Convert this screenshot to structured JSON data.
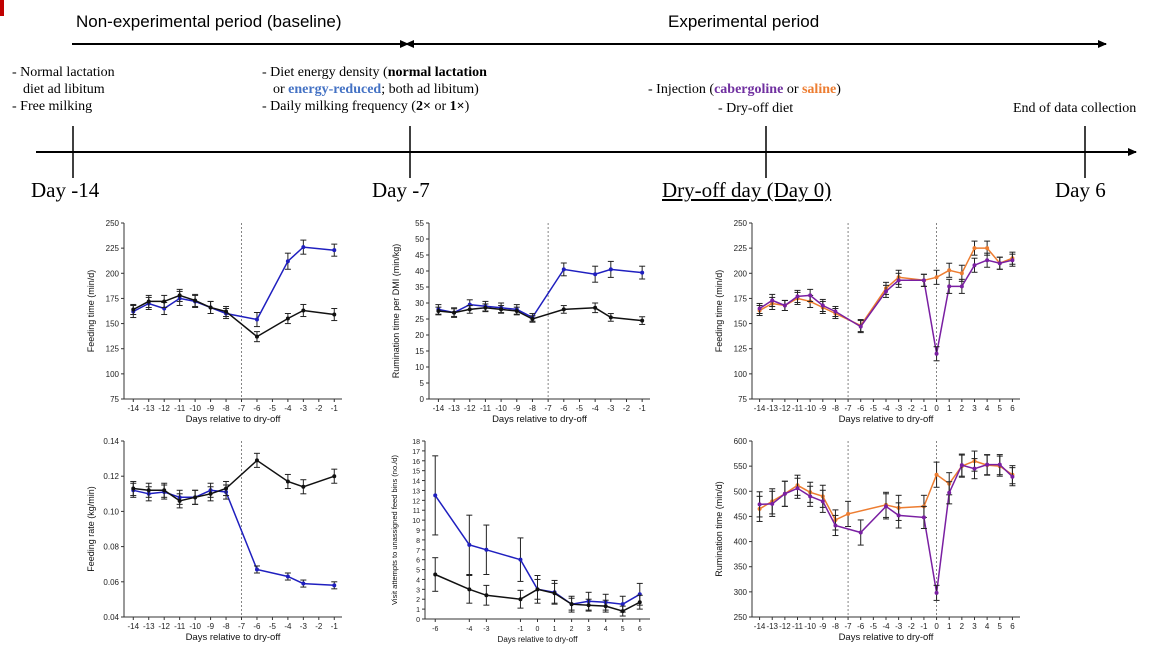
{
  "timeline": {
    "period_baseline": "Non-experimental period (baseline)",
    "period_experimental": "Experimental period",
    "left_line1": "- Normal lactation",
    "left_line2": "diet ad libitum",
    "left_line3": "- Free milking",
    "mid_prefix": "- Diet energy density (",
    "mid_normal": "normal lactation",
    "mid_or": "or ",
    "mid_reduced": "energy-reduced",
    "mid_suffix": "; both ad libitum)",
    "mid_line3_a": "- Daily milking  frequency (",
    "mid_2x": "2×",
    "mid_or2": " or ",
    "mid_1x": "1×",
    "mid_close": ")",
    "inj_prefix": "- Injection  (",
    "inj_cab": "cabergoline",
    "inj_or": " or ",
    "inj_sal": "saline",
    "inj_close": ")",
    "dryoff_diet": "- Dry-off diet",
    "end_label": "End of data collection",
    "day_m14": "Day -14",
    "day_m7": "Day -7",
    "day_0": "Dry-off day (Day 0)",
    "day_6": "Day 6"
  },
  "colors": {
    "blue": "#1f1fbf",
    "black": "#111111",
    "orange": "#ed7d31",
    "purple": "#7a1fa2"
  },
  "chart_data": [
    {
      "id": "feeding-time-diet",
      "type": "line",
      "ylabel": "Feeding time (min/d)",
      "xlabel": "Days relative to dry-off",
      "ylim": [
        75,
        250
      ],
      "yticks": [
        75,
        100,
        125,
        150,
        175,
        200,
        225,
        250
      ],
      "xlim": [
        -14.6,
        -0.5
      ],
      "xticks": [
        -14,
        -13,
        -12,
        -11,
        -10,
        -9,
        -8,
        -7,
        -6,
        -5,
        -4,
        -3,
        -2,
        -1
      ],
      "vline": -7,
      "series": [
        {
          "color": "blue",
          "x": [
            -14,
            -13,
            -12,
            -11,
            -10,
            -9,
            -8,
            -6,
            -4,
            -3,
            -1
          ],
          "y": [
            162,
            170,
            165,
            175,
            172,
            166,
            160,
            154,
            212,
            226,
            223
          ],
          "err": [
            6,
            6,
            6,
            7,
            6,
            6,
            5,
            7,
            8,
            7,
            6
          ]
        },
        {
          "color": "black",
          "x": [
            -14,
            -13,
            -12,
            -11,
            -10,
            -9,
            -8,
            -6,
            -4,
            -3,
            -1
          ],
          "y": [
            164,
            172,
            172,
            178,
            173,
            166,
            162,
            137,
            155,
            163,
            159
          ],
          "err": [
            5,
            6,
            6,
            6,
            6,
            6,
            5,
            5,
            5,
            6,
            6
          ]
        }
      ]
    },
    {
      "id": "rumination-per-dmi",
      "type": "line",
      "ylabel": "Rumination time per DMI (min/kg)",
      "xlabel": "Days relative to dry-off",
      "ylim": [
        0,
        55
      ],
      "yticks": [
        0,
        5,
        10,
        15,
        20,
        25,
        30,
        35,
        40,
        45,
        50,
        55
      ],
      "xlim": [
        -14.6,
        -0.5
      ],
      "xticks": [
        -14,
        -13,
        -12,
        -11,
        -10,
        -9,
        -8,
        -7,
        -6,
        -5,
        -4,
        -3,
        -2,
        -1
      ],
      "vline": -7,
      "series": [
        {
          "color": "blue",
          "x": [
            -14,
            -13,
            -12,
            -11,
            -10,
            -9,
            -8,
            -6,
            -4,
            -3,
            -1
          ],
          "y": [
            28,
            27,
            29.5,
            29,
            28.5,
            28,
            25.5,
            40.5,
            39,
            40.5,
            39.5
          ],
          "err": [
            1.5,
            1.5,
            1.5,
            1.5,
            1.5,
            1.5,
            1.2,
            2,
            2.5,
            2.5,
            2
          ]
        },
        {
          "color": "black",
          "x": [
            -14,
            -13,
            -12,
            -11,
            -10,
            -9,
            -8,
            -6,
            -4,
            -3,
            -1
          ],
          "y": [
            27.5,
            27,
            28,
            28.5,
            28,
            27.5,
            25,
            28,
            28.5,
            25.5,
            24.5
          ],
          "err": [
            1.2,
            1.2,
            1.2,
            1.2,
            1.2,
            1.2,
            1,
            1.2,
            1.5,
            1.2,
            1.2
          ]
        }
      ]
    },
    {
      "id": "feeding-time-injection",
      "type": "line",
      "ylabel": "Feeding time (min/d)",
      "xlabel": "Days relative to dry-off",
      "ylim": [
        75,
        250
      ],
      "yticks": [
        75,
        100,
        125,
        150,
        175,
        200,
        225,
        250
      ],
      "xlim": [
        -14.6,
        6.6
      ],
      "xticks": [
        -14,
        -13,
        -12,
        -11,
        -10,
        -9,
        -8,
        -7,
        -6,
        -5,
        -4,
        -3,
        -2,
        -1,
        0,
        1,
        2,
        3,
        4,
        5,
        6
      ],
      "vline": [
        -7,
        0
      ],
      "series": [
        {
          "color": "orange",
          "x": [
            -14,
            -13,
            -12,
            -11,
            -10,
            -9,
            -8,
            -6,
            -4,
            -3,
            -1,
            0,
            1,
            2,
            3,
            4,
            5,
            6
          ],
          "y": [
            163,
            170,
            168,
            175,
            172,
            166,
            160,
            148,
            185,
            196,
            193,
            196,
            203,
            200,
            225,
            225,
            210,
            215
          ],
          "err": [
            5,
            6,
            5,
            6,
            6,
            6,
            5,
            6,
            6,
            7,
            6,
            7,
            7,
            8,
            7,
            7,
            6,
            6
          ]
        },
        {
          "color": "purple",
          "x": [
            -14,
            -13,
            -12,
            -11,
            -10,
            -9,
            -8,
            -6,
            -4,
            -3,
            -1,
            0,
            1,
            2,
            3,
            4,
            5,
            6
          ],
          "y": [
            165,
            173,
            168,
            177,
            178,
            168,
            162,
            147,
            182,
            193,
            193,
            120,
            187,
            187,
            208,
            213,
            210,
            213
          ],
          "err": [
            5,
            6,
            5,
            6,
            6,
            6,
            5,
            6,
            6,
            7,
            6,
            7,
            7,
            7,
            7,
            7,
            6,
            6
          ]
        }
      ]
    },
    {
      "id": "feeding-rate",
      "type": "line",
      "ylabel": "Feeding rate (kg/min)",
      "xlabel": "Days relative to dry-off",
      "ylim": [
        0.04,
        0.14
      ],
      "yticks": [
        0.04,
        0.06,
        0.08,
        0.1,
        0.12,
        0.14
      ],
      "ytick_labels": [
        "0.04",
        "0.06",
        "0.08",
        "0.10",
        "0.12",
        "0.14"
      ],
      "xlim": [
        -14.6,
        -0.5
      ],
      "xticks": [
        -14,
        -13,
        -12,
        -11,
        -10,
        -9,
        -8,
        -7,
        -6,
        -5,
        -4,
        -3,
        -2,
        -1
      ],
      "vline": -7,
      "series": [
        {
          "color": "blue",
          "x": [
            -14,
            -13,
            -12,
            -11,
            -10,
            -9,
            -8,
            -6,
            -4,
            -3,
            -1
          ],
          "y": [
            0.112,
            0.11,
            0.111,
            0.108,
            0.108,
            0.112,
            0.111,
            0.067,
            0.063,
            0.059,
            0.058
          ],
          "err": [
            0.004,
            0.004,
            0.004,
            0.004,
            0.004,
            0.004,
            0.004,
            0.002,
            0.002,
            0.002,
            0.002
          ]
        },
        {
          "color": "black",
          "x": [
            -14,
            -13,
            -12,
            -11,
            -10,
            -9,
            -8,
            -6,
            -4,
            -3,
            -1
          ],
          "y": [
            0.113,
            0.112,
            0.112,
            0.106,
            0.108,
            0.11,
            0.113,
            0.129,
            0.117,
            0.114,
            0.12
          ],
          "err": [
            0.004,
            0.004,
            0.004,
            0.004,
            0.004,
            0.004,
            0.004,
            0.004,
            0.004,
            0.004,
            0.004
          ]
        }
      ]
    },
    {
      "id": "visit-attempts",
      "type": "line",
      "ylabel": "Visit attempts to unassigned feed bins (no./d)",
      "xlabel": "Days relative to dry-off",
      "ylim": [
        0,
        18
      ],
      "yticks": [
        0,
        1,
        2,
        3,
        4,
        5,
        6,
        7,
        8,
        9,
        10,
        11,
        12,
        13,
        14,
        15,
        16,
        17,
        18
      ],
      "xlim": [
        -6.6,
        6.6
      ],
      "xticks": [
        -6,
        -4,
        -3,
        -1,
        0,
        1,
        2,
        3,
        4,
        5,
        6
      ],
      "series": [
        {
          "color": "blue",
          "x": [
            -6,
            -4,
            -3,
            -1,
            0,
            1,
            2,
            3,
            4,
            5,
            6
          ],
          "y": [
            12.5,
            7.5,
            7,
            6,
            3,
            2.7,
            1.5,
            1.8,
            1.7,
            1.5,
            2.5
          ],
          "err": [
            4,
            3,
            2.5,
            2.2,
            1.4,
            1.2,
            0.8,
            0.9,
            0.8,
            0.8,
            1.1
          ]
        },
        {
          "color": "black",
          "x": [
            -6,
            -4,
            -3,
            -1,
            0,
            1,
            2,
            3,
            4,
            5,
            6
          ],
          "y": [
            4.5,
            3,
            2.4,
            2,
            3,
            2.6,
            1.5,
            1.4,
            1.3,
            0.8,
            1.7
          ],
          "err": [
            1.7,
            1.4,
            1,
            0.9,
            1,
            1,
            0.6,
            0.6,
            0.6,
            0.5,
            0.7
          ]
        }
      ]
    },
    {
      "id": "rumination-time",
      "type": "line",
      "ylabel": "Rumination time (min/d)",
      "xlabel": "Days relative to dry-off",
      "ylim": [
        250,
        600
      ],
      "yticks": [
        250,
        300,
        350,
        400,
        450,
        500,
        550,
        600
      ],
      "xlim": [
        -14.6,
        6.6
      ],
      "xticks": [
        -14,
        -13,
        -12,
        -11,
        -10,
        -9,
        -8,
        -7,
        -6,
        -5,
        -4,
        -3,
        -2,
        -1,
        0,
        1,
        2,
        3,
        4,
        5,
        6
      ],
      "vline": [
        -7,
        0
      ],
      "series": [
        {
          "color": "orange",
          "x": [
            -14,
            -13,
            -12,
            -11,
            -10,
            -9,
            -8,
            -7,
            -4,
            -3,
            -1,
            0,
            1,
            2,
            3,
            4,
            5,
            6
          ],
          "y": [
            465,
            480,
            495,
            512,
            498,
            490,
            443,
            455,
            473,
            467,
            470,
            533,
            515,
            550,
            560,
            552,
            550,
            533
          ],
          "err": [
            25,
            25,
            25,
            20,
            20,
            22,
            20,
            25,
            25,
            25,
            22,
            25,
            22,
            22,
            20,
            20,
            20,
            18
          ]
        },
        {
          "color": "purple",
          "x": [
            -14,
            -13,
            -12,
            -11,
            -10,
            -9,
            -8,
            -6,
            -4,
            -3,
            -1,
            0,
            1,
            2,
            3,
            4,
            5,
            6
          ],
          "y": [
            474,
            475,
            495,
            506,
            490,
            480,
            432,
            418,
            470,
            452,
            448,
            298,
            497,
            552,
            545,
            553,
            553,
            529
          ],
          "err": [
            25,
            25,
            25,
            20,
            20,
            22,
            20,
            25,
            25,
            25,
            22,
            15,
            22,
            22,
            20,
            20,
            20,
            18
          ]
        }
      ]
    }
  ]
}
